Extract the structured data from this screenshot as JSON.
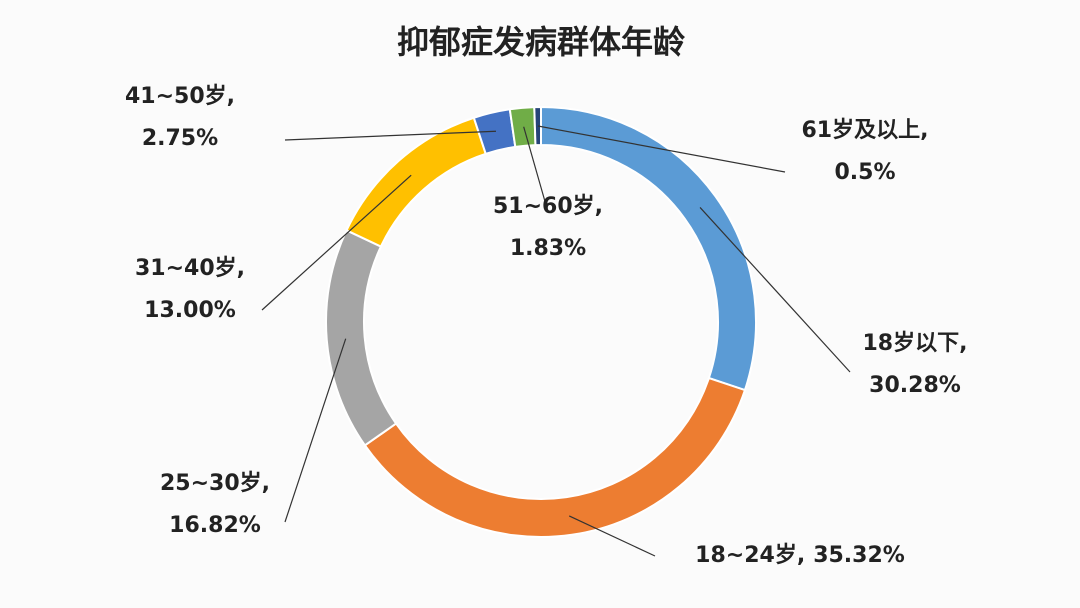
{
  "chart_data": {
    "type": "donut",
    "title": "抑郁症发病群体年龄",
    "categories": [
      "18岁以下,",
      "18~24岁,",
      "25~30岁,",
      "31~40岁,",
      "41~50岁,",
      "51~60岁,",
      "61岁及以上,"
    ],
    "values": [
      30.28,
      35.32,
      16.82,
      13.0,
      2.75,
      1.83,
      0.5
    ],
    "value_labels": [
      "30.28%",
      "35.32%",
      "16.82%",
      "13.00%",
      "2.75%",
      "1.83%",
      "0.5%"
    ],
    "colors": [
      "#5b9bd5",
      "#ed7d31",
      "#a5a5a5",
      "#ffc000",
      "#4472c4",
      "#70ad47",
      "#264478"
    ]
  }
}
